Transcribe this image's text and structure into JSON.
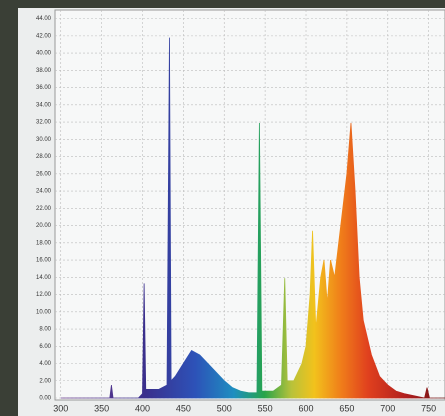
{
  "chart_data": {
    "type": "area",
    "x": [
      300,
      350,
      360,
      362,
      364,
      395,
      400,
      402,
      404,
      410,
      420,
      430,
      433,
      435,
      440,
      450,
      460,
      470,
      480,
      490,
      500,
      510,
      520,
      530,
      540,
      543,
      546,
      560,
      570,
      574,
      577,
      585,
      595,
      600,
      605,
      608,
      612,
      618,
      622,
      626,
      630,
      635,
      640,
      645,
      650,
      655,
      660,
      665,
      670,
      680,
      690,
      700,
      710,
      720,
      730,
      745,
      748,
      751,
      770
    ],
    "values": [
      0,
      0,
      0,
      1.5,
      0,
      0,
      0.5,
      13.3,
      1,
      1,
      1,
      1.5,
      41.8,
      2,
      2.5,
      4,
      5.5,
      5,
      4,
      3,
      2,
      1.2,
      0.8,
      0.6,
      0.6,
      31.9,
      0.8,
      0.8,
      1.5,
      13.9,
      2,
      2,
      4,
      6,
      12,
      19.4,
      8,
      14,
      16,
      11,
      16,
      14,
      18,
      22,
      26,
      31.9,
      24,
      14,
      9,
      5,
      2.5,
      1.5,
      0.8,
      0.5,
      0.3,
      0,
      1.2,
      0,
      0
    ],
    "xlim": [
      293,
      770
    ],
    "xticks": [
      300,
      350,
      400,
      450,
      500,
      550,
      600,
      650,
      700,
      750
    ],
    "ylim": [
      0,
      45
    ],
    "yticks": [
      {
        "value": 0,
        "label": "0.00"
      },
      {
        "value": 2,
        "label": "2.00"
      },
      {
        "value": 4,
        "label": "4.00"
      },
      {
        "value": 6,
        "label": "6.00"
      },
      {
        "value": 8,
        "label": "8.00"
      },
      {
        "value": 10,
        "label": "10.00"
      },
      {
        "value": 12,
        "label": "12.00"
      },
      {
        "value": 14,
        "label": "14.00"
      },
      {
        "value": 16,
        "label": "16.00"
      },
      {
        "value": 18,
        "label": "18.00"
      },
      {
        "value": 20,
        "label": "20.00"
      },
      {
        "value": 22,
        "label": "22.00"
      },
      {
        "value": 24,
        "label": "24.00"
      },
      {
        "value": 26,
        "label": "26.00"
      },
      {
        "value": 28,
        "label": "28.00"
      },
      {
        "value": 30,
        "label": "30.00"
      },
      {
        "value": 32,
        "label": "32.00"
      },
      {
        "value": 34,
        "label": "34.00"
      },
      {
        "value": 36,
        "label": "36.00"
      },
      {
        "value": 38,
        "label": "38.00"
      },
      {
        "value": 40,
        "label": "40.00"
      },
      {
        "value": 42,
        "label": "42.00"
      },
      {
        "value": 44,
        "label": "44.00"
      }
    ],
    "grid": true
  }
}
